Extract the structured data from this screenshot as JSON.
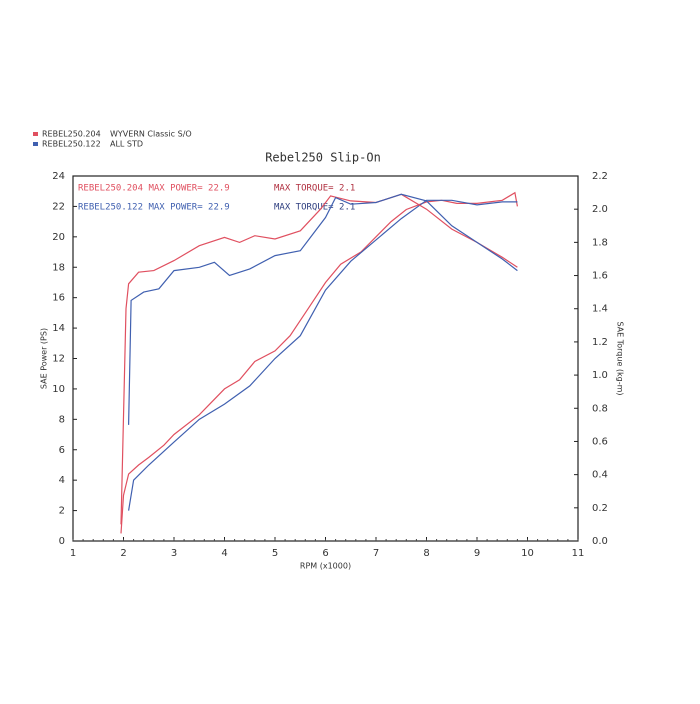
{
  "chart_data": {
    "type": "line",
    "title": "Rebel250 Slip-On",
    "x_label": "RPM (x1000)",
    "y_label": "SAE Power (PS)",
    "y2_label": "SAE Torque (kg-m)",
    "xlim": [
      1,
      11
    ],
    "xticks": [
      1,
      2,
      3,
      4,
      5,
      6,
      7,
      8,
      9,
      10,
      11
    ],
    "ylim": [
      0,
      24
    ],
    "yticks": [
      0,
      2,
      4,
      6,
      8,
      10,
      12,
      14,
      16,
      18,
      20,
      22,
      24
    ],
    "y2lim": [
      0,
      2.2
    ],
    "y2ticks": [
      {
        "value": 0,
        "label": "0.0"
      },
      0.2,
      0.4,
      0.6,
      0.8,
      {
        "value": 1,
        "label": "1.0"
      },
      1.2,
      1.4,
      1.6,
      1.8,
      {
        "value": 2,
        "label": "2.0"
      },
      2.2
    ],
    "legend": [
      {
        "name": "REBEL250.204",
        "description": "WYVERN Classic S/O",
        "color": "#e05060"
      },
      {
        "name": "REBEL250.122",
        "description": "ALL STD",
        "color": "#4060b0"
      }
    ],
    "annotations": [
      {
        "text": "REBEL250.204  MAX POWER= 22.9",
        "color": "#e05060"
      },
      {
        "text": "MAX TORQUE= 2.1",
        "color": "#b03040"
      },
      {
        "text": "REBEL250.122  MAX POWER= 22.9",
        "color": "#4060b0"
      },
      {
        "text": "MAX TORQUE= 2.1",
        "color": "#304080"
      }
    ],
    "series": [
      {
        "name": "REBEL250.204 power",
        "color": "#e05060",
        "x": [
          1.95,
          2.0,
          2.1,
          2.3,
          2.5,
          2.8,
          3.0,
          3.5,
          4.0,
          4.3,
          4.6,
          5.0,
          5.3,
          5.6,
          6.0,
          6.3,
          6.7,
          7.0,
          7.3,
          7.6,
          8.0,
          8.3,
          8.6,
          9.0,
          9.5,
          9.75,
          9.8
        ],
        "values": [
          0.5,
          3,
          4.4,
          5,
          5.5,
          6.3,
          7,
          8.3,
          10,
          10.6,
          11.8,
          12.5,
          13.5,
          15,
          17,
          18.2,
          19,
          20,
          21,
          21.8,
          22.3,
          22.4,
          22.2,
          22.2,
          22.4,
          22.9,
          22
        ]
      },
      {
        "name": "REBEL250.122 power",
        "color": "#4060b0",
        "x": [
          2.1,
          2.2,
          2.5,
          3.0,
          3.5,
          4.0,
          4.5,
          5.0,
          5.5,
          6.0,
          6.5,
          7.0,
          7.5,
          8.0,
          8.5,
          9.0,
          9.5,
          9.8
        ],
        "values": [
          2,
          4,
          5,
          6.5,
          8,
          9,
          10.2,
          12,
          13.5,
          16.5,
          18.4,
          19.8,
          21.2,
          22.4,
          22.4,
          22.1,
          22.3,
          22.3
        ]
      },
      {
        "name": "REBEL250.204 torque",
        "color": "#e05060",
        "axis": "y2",
        "x": [
          1.95,
          2.05,
          2.1,
          2.3,
          2.6,
          3.0,
          3.5,
          4.0,
          4.3,
          4.6,
          5.0,
          5.5,
          5.9,
          6.1,
          6.5,
          7.0,
          7.5,
          8.0,
          8.5,
          9.0,
          9.5,
          9.8
        ],
        "values": [
          0.1,
          1.4,
          1.55,
          1.62,
          1.63,
          1.69,
          1.78,
          1.83,
          1.8,
          1.84,
          1.82,
          1.87,
          2.0,
          2.08,
          2.05,
          2.04,
          2.09,
          2.0,
          1.88,
          1.8,
          1.71,
          1.65
        ]
      },
      {
        "name": "REBEL250.122 torque",
        "color": "#4060b0",
        "axis": "y2",
        "x": [
          2.1,
          2.15,
          2.4,
          2.7,
          3.0,
          3.5,
          3.8,
          4.1,
          4.5,
          5.0,
          5.5,
          6.0,
          6.2,
          6.5,
          7.0,
          7.5,
          8.0,
          8.5,
          9.0,
          9.5,
          9.8
        ],
        "values": [
          0.7,
          1.45,
          1.5,
          1.52,
          1.63,
          1.65,
          1.68,
          1.6,
          1.64,
          1.72,
          1.75,
          1.95,
          2.07,
          2.03,
          2.04,
          2.09,
          2.05,
          1.9,
          1.8,
          1.7,
          1.63
        ]
      }
    ]
  }
}
